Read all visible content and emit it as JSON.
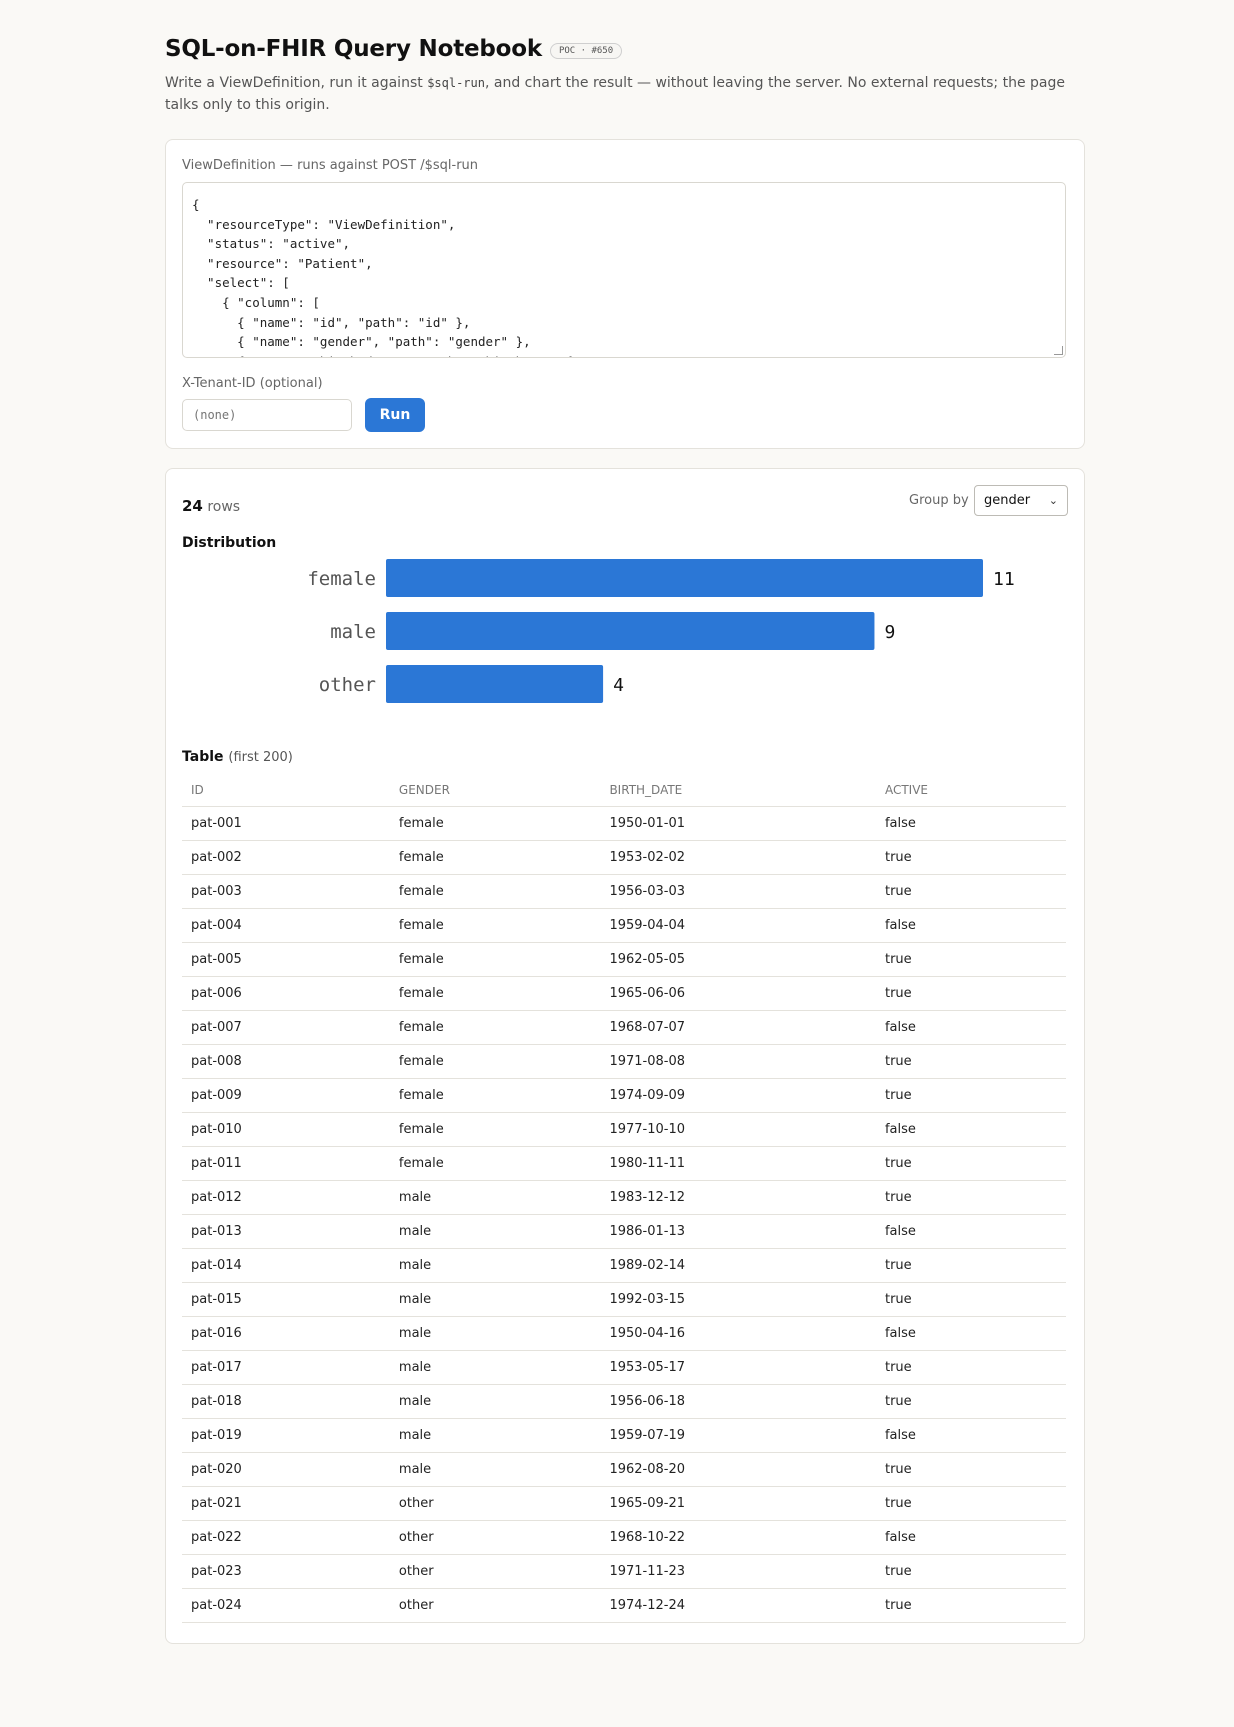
{
  "header": {
    "title": "SQL-on-FHIR Query Notebook",
    "badge": "POC · #650",
    "subtitle_pre": "Write a ViewDefinition, run it against ",
    "subtitle_code": "$sql-run",
    "subtitle_post": ", and chart the result — without leaving the server. No external requests; the page talks only to this origin."
  },
  "editor": {
    "label": "ViewDefinition — runs against POST /$sql-run",
    "value": "{\n  \"resourceType\": \"ViewDefinition\",\n  \"status\": \"active\",\n  \"resource\": \"Patient\",\n  \"select\": [\n    { \"column\": [\n      { \"name\": \"id\", \"path\": \"id\" },\n      { \"name\": \"gender\", \"path\": \"gender\" },\n      { \"name\": \"birth_date\", \"path\": \"birthDate\" },\n      { \"name\": \"active\", \"path\": \"active\" }\n    ] }\n  ]\n}"
  },
  "tenant": {
    "label": "X-Tenant-ID (optional)",
    "placeholder": "(none)"
  },
  "run_label": "Run",
  "results": {
    "row_count": "24",
    "rows_label": "rows",
    "group_by_label": "Group by",
    "group_by_value": "gender",
    "distribution_title": "Distribution",
    "table_title": "Table",
    "table_note": "(first 200)"
  },
  "colors": {
    "accent": "#2b77d6",
    "background": "#faf9f6"
  },
  "chart_data": {
    "type": "bar",
    "orientation": "horizontal",
    "title": "Distribution",
    "categories": [
      "female",
      "male",
      "other"
    ],
    "values": [
      11,
      9,
      4
    ],
    "xlim": [
      0,
      11
    ]
  },
  "table": {
    "columns": [
      "ID",
      "GENDER",
      "BIRTH_DATE",
      "ACTIVE"
    ],
    "rows": [
      [
        "pat-001",
        "female",
        "1950-01-01",
        "false"
      ],
      [
        "pat-002",
        "female",
        "1953-02-02",
        "true"
      ],
      [
        "pat-003",
        "female",
        "1956-03-03",
        "true"
      ],
      [
        "pat-004",
        "female",
        "1959-04-04",
        "false"
      ],
      [
        "pat-005",
        "female",
        "1962-05-05",
        "true"
      ],
      [
        "pat-006",
        "female",
        "1965-06-06",
        "true"
      ],
      [
        "pat-007",
        "female",
        "1968-07-07",
        "false"
      ],
      [
        "pat-008",
        "female",
        "1971-08-08",
        "true"
      ],
      [
        "pat-009",
        "female",
        "1974-09-09",
        "true"
      ],
      [
        "pat-010",
        "female",
        "1977-10-10",
        "false"
      ],
      [
        "pat-011",
        "female",
        "1980-11-11",
        "true"
      ],
      [
        "pat-012",
        "male",
        "1983-12-12",
        "true"
      ],
      [
        "pat-013",
        "male",
        "1986-01-13",
        "false"
      ],
      [
        "pat-014",
        "male",
        "1989-02-14",
        "true"
      ],
      [
        "pat-015",
        "male",
        "1992-03-15",
        "true"
      ],
      [
        "pat-016",
        "male",
        "1950-04-16",
        "false"
      ],
      [
        "pat-017",
        "male",
        "1953-05-17",
        "true"
      ],
      [
        "pat-018",
        "male",
        "1956-06-18",
        "true"
      ],
      [
        "pat-019",
        "male",
        "1959-07-19",
        "false"
      ],
      [
        "pat-020",
        "male",
        "1962-08-20",
        "true"
      ],
      [
        "pat-021",
        "other",
        "1965-09-21",
        "true"
      ],
      [
        "pat-022",
        "other",
        "1968-10-22",
        "false"
      ],
      [
        "pat-023",
        "other",
        "1971-11-23",
        "true"
      ],
      [
        "pat-024",
        "other",
        "1974-12-24",
        "true"
      ]
    ]
  }
}
